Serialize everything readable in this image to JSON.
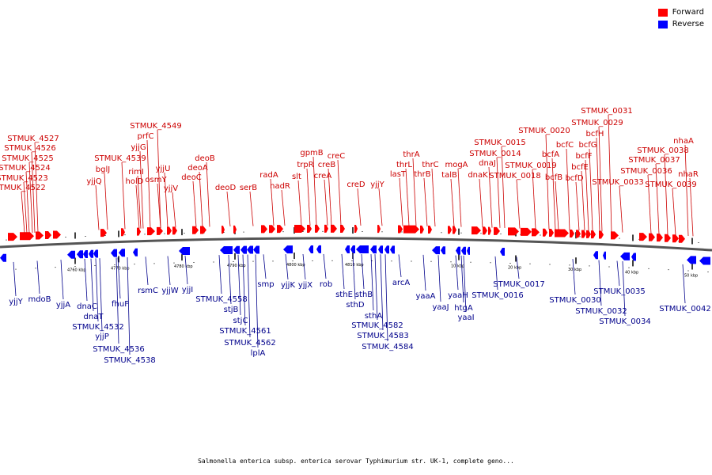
{
  "title": "Salmonella enterica subsp. enterica serovar Typhimurium str. UK-1, complete geno...",
  "legend": [
    {
      "label": "Forward",
      "color": "#ff0000"
    },
    {
      "label": "Reverse",
      "color": "#0000ff"
    }
  ],
  "colors": {
    "forward": "#ff0000",
    "reverse": "#0000ff",
    "forward_label": "#cc0000",
    "reverse_label": "#00008b",
    "backbone": "#555555"
  },
  "scale_ticks": [
    "4760 kbp",
    "4770 kbp",
    "4780 kbp",
    "4790 kbp",
    "4800 kbp",
    "4810 kbp",
    "10 kbp",
    "20 kbp",
    "30 kbp",
    "40 kbp",
    "50 kbp"
  ],
  "forward_genes": [
    "STMUK_4527",
    "STMUK_4526",
    "STMUK_4525",
    "STMUK_4524",
    "STMUK_4523",
    "STMUK_4522",
    "yjjQ",
    "bglJ",
    "STMUK_4539",
    "rimI",
    "holD",
    "STMUK_4549",
    "prfC",
    "yjjG",
    "osmY",
    "yjjU",
    "yjjV",
    "deoC",
    "deoA",
    "deoB",
    "deoD",
    "serB",
    "radA",
    "nadR",
    "slt",
    "trpR",
    "gpmB",
    "creB",
    "creA",
    "creC",
    "creD",
    "yjjY",
    "lasT",
    "thrL",
    "thrA",
    "thrB",
    "thrC",
    "mogA",
    "talB",
    "dnaK",
    "dnaJ",
    "STMUK_0014",
    "STMUK_0015",
    "STMUK_0018",
    "STMUK_0019",
    "STMUK_0020",
    "bcfA",
    "bcfB",
    "bcfC",
    "bcfD",
    "bcfE",
    "bcfF",
    "bcfG",
    "bcfH",
    "STMUK_0029",
    "STMUK_0031",
    "STMUK_0033",
    "STMUK_0036",
    "STMUK_0037",
    "STMUK_0038",
    "nhaA",
    "STMUK_0039",
    "nhaR"
  ],
  "reverse_genes": [
    "yjjY",
    "mdoB",
    "yjjA",
    "dnaC",
    "dnaT",
    "STMUK_4532",
    "yjjP",
    "fhuF",
    "STMUK_4536",
    "STMUK_4538",
    "rsmC",
    "yjjW",
    "yjjI",
    "STMUK_4558",
    "stjB",
    "stjC",
    "STMUK_4561",
    "STMUK_4562",
    "lplA",
    "smp",
    "yjjK",
    "yjjX",
    "rob",
    "sthE",
    "sthD",
    "sthB",
    "sthA",
    "STMUK_4582",
    "STMUK_4583",
    "STMUK_4584",
    "arcA",
    "yaaA",
    "yaaJ",
    "yaaH",
    "htgA",
    "yaaI",
    "STMUK_0016",
    "STMUK_0017",
    "STMUK_0030",
    "STMUK_0032",
    "STMUK_0034",
    "STMUK_0035",
    "STMUK_0042"
  ]
}
